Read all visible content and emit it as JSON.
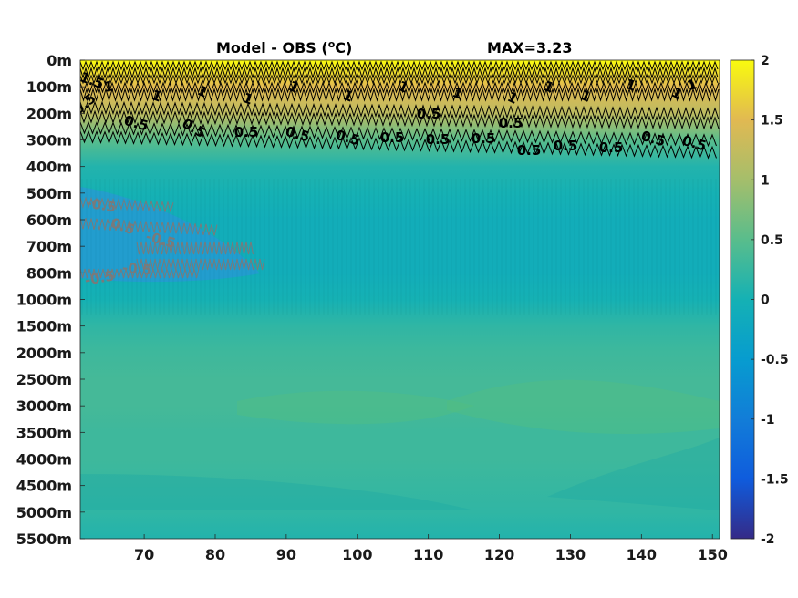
{
  "chart_data": {
    "type": "heatmap",
    "title": "Model - OBS (°C)",
    "title_main": "Model - OBS (",
    "title_unit_sup": "o",
    "title_unit_end": "C)",
    "max_label": "MAX=3.23",
    "x_ticks": [
      70,
      80,
      90,
      100,
      110,
      120,
      130,
      140,
      150
    ],
    "xlim": [
      61,
      151
    ],
    "y_tick_labels": [
      "0m",
      "100m",
      "200m",
      "300m",
      "400m",
      "500m",
      "600m",
      "700m",
      "800m",
      "1000m",
      "1500m",
      "2000m",
      "2500m",
      "3000m",
      "3500m",
      "4000m",
      "4500m",
      "5000m",
      "5500m"
    ],
    "colorbar": {
      "range": [
        -2,
        2
      ],
      "tick_labels": [
        "2",
        "1.5",
        "1",
        "0.5",
        "0",
        "-0.5",
        "-1",
        "-1.5",
        "-2"
      ],
      "colormap": "parula"
    },
    "field_profile": {
      "depth_levels": [
        "0m",
        "100m",
        "200m",
        "300m",
        "400m",
        "500m",
        "600m",
        "700m",
        "800m",
        "1000m",
        "1500m",
        "2000m",
        "2500m",
        "3000m",
        "3500m",
        "4000m",
        "4500m",
        "5000m",
        "5500m"
      ],
      "approx_values": [
        2.0,
        1.5,
        1.2,
        0.5,
        0.1,
        0.0,
        -0.1,
        -0.1,
        -0.1,
        0.0,
        0.2,
        0.3,
        0.35,
        0.35,
        0.3,
        0.3,
        0.25,
        0.2,
        0.1
      ]
    },
    "contour_labels_black": [
      "1.5",
      "1",
      "1",
      "1",
      "1",
      "1",
      "1",
      "1",
      "1",
      "1",
      "1",
      "1",
      "1",
      "1",
      "1",
      "0.5",
      "0.5",
      "0.5",
      "0.5",
      "0.5",
      "0.5",
      "0.5",
      "0.5",
      "0.5",
      "0.5",
      "0.5",
      "0.5",
      "0.5",
      "0.5",
      "0.5",
      "0.5"
    ],
    "contour_labels_gray": [
      "-0.5",
      "-0.5",
      "-0.5",
      "-0.5",
      "-0.5"
    ],
    "colors": {
      "contour_positive": "#000000",
      "contour_negative": "#7a7a7a",
      "frame": "#262626"
    }
  }
}
